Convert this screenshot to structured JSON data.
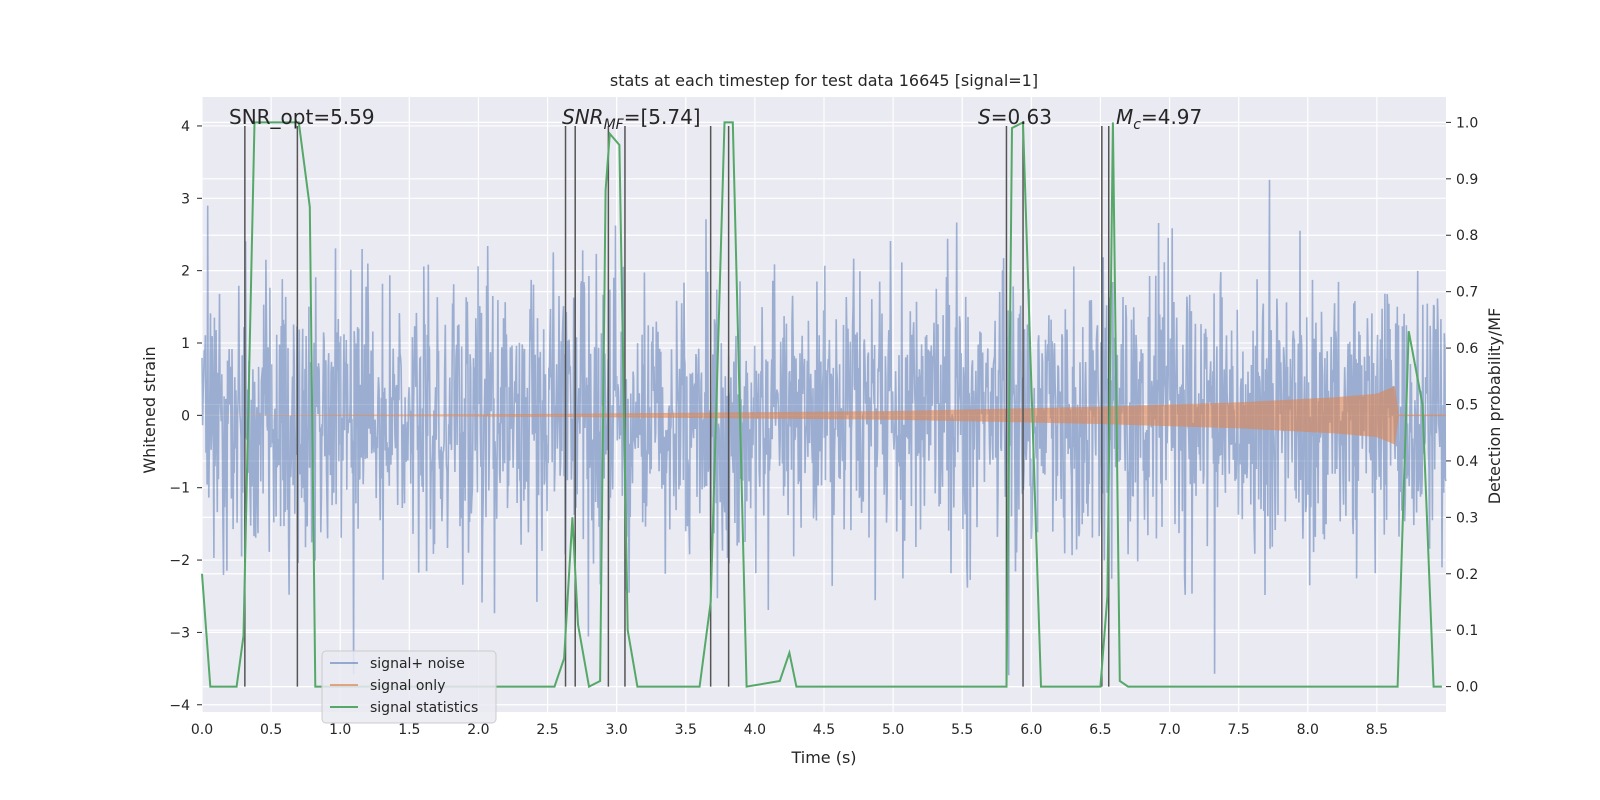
{
  "chart_data": {
    "type": "line",
    "title": "stats at each timestep for test data 16645 [signal=1]",
    "xlabel": "Time (s)",
    "ylabel": "Whitened strain",
    "ylabel_right": "Detection probability/MF",
    "xlim": [
      0.0,
      9.0
    ],
    "ylim": [
      -4.1,
      4.4
    ],
    "ylim_right": [
      -0.045,
      1.045
    ],
    "grid": true,
    "legend_position": "lower-left",
    "x_ticks": [
      "0.0",
      "0.5",
      "1.0",
      "1.5",
      "2.0",
      "2.5",
      "3.0",
      "3.5",
      "4.0",
      "4.5",
      "5.0",
      "5.5",
      "6.0",
      "6.5",
      "7.0",
      "7.5",
      "8.0",
      "8.5"
    ],
    "y_ticks": [
      "−4",
      "−3",
      "−2",
      "−1",
      "0",
      "1",
      "2",
      "3",
      "4"
    ],
    "y_ticks_right": [
      "0.0",
      "0.1",
      "0.2",
      "0.3",
      "0.4",
      "0.5",
      "0.6",
      "0.7",
      "0.8",
      "0.9",
      "1.0"
    ],
    "annotations": {
      "snr_opt": "SNR_opt=5.59",
      "snr_mf_main": "SNR",
      "snr_mf_sub": "MF",
      "snr_mf_val": "=[5.74]",
      "s_main": "S",
      "s_val": "=0.63",
      "mc_main": "M",
      "mc_sub": "c",
      "mc_val": "=4.97"
    },
    "series": [
      {
        "name": "signal+ noise",
        "color": "#4c72b0",
        "axis": "left",
        "description": "whitened noisy strain, amplitude roughly within ±2 with spikes to ±4",
        "seed": 16645,
        "n_samples": 2200
      },
      {
        "name": "signal only",
        "color": "#dd8452",
        "axis": "left",
        "description": "chirp envelope growing with time",
        "envelope": {
          "t": [
            0.0,
            2.5,
            5.0,
            6.5,
            7.5,
            8.2,
            8.5,
            8.65,
            8.66
          ],
          "amp": [
            0.0,
            0.02,
            0.06,
            0.12,
            0.18,
            0.25,
            0.3,
            0.42,
            0.0
          ]
        }
      },
      {
        "name": "signal statistics",
        "color": "#55a868",
        "axis": "right",
        "x": [
          0.0,
          0.06,
          0.25,
          0.3,
          0.38,
          0.7,
          0.78,
          0.82,
          1.0,
          2.55,
          2.62,
          2.68,
          2.72,
          2.8,
          2.88,
          2.92,
          2.95,
          3.02,
          3.08,
          3.15,
          3.22,
          3.6,
          3.68,
          3.78,
          3.84,
          3.94,
          4.18,
          4.25,
          4.3,
          5.5,
          5.82,
          5.86,
          5.94,
          6.07,
          6.5,
          6.55,
          6.59,
          6.64,
          6.7,
          8.65,
          8.73,
          8.83,
          8.91,
          8.97
        ],
        "y": [
          0.2,
          0.0,
          0.0,
          0.09,
          1.0,
          1.0,
          0.85,
          0.0,
          0.0,
          0.0,
          0.05,
          0.3,
          0.11,
          0.0,
          0.01,
          0.88,
          0.98,
          0.96,
          0.1,
          0.0,
          0.0,
          0.0,
          0.15,
          1.0,
          1.0,
          0.0,
          0.01,
          0.06,
          0.0,
          0.0,
          0.0,
          0.99,
          1.0,
          0.0,
          0.0,
          0.16,
          1.0,
          0.01,
          0.0,
          0.0,
          0.63,
          0.5,
          0.0,
          0.0
        ]
      }
    ],
    "markers": {
      "color": "#555555",
      "description": "vertical black lines at detection edges",
      "x": [
        0.31,
        0.69,
        2.63,
        2.7,
        2.94,
        3.06,
        3.68,
        3.81,
        5.82,
        5.94,
        6.51,
        6.56
      ]
    }
  },
  "legend": {
    "items": [
      {
        "label": "signal+ noise",
        "color": "#4c72b0"
      },
      {
        "label": "signal only",
        "color": "#dd8452"
      },
      {
        "label": "signal statistics",
        "color": "#55a868"
      }
    ]
  }
}
